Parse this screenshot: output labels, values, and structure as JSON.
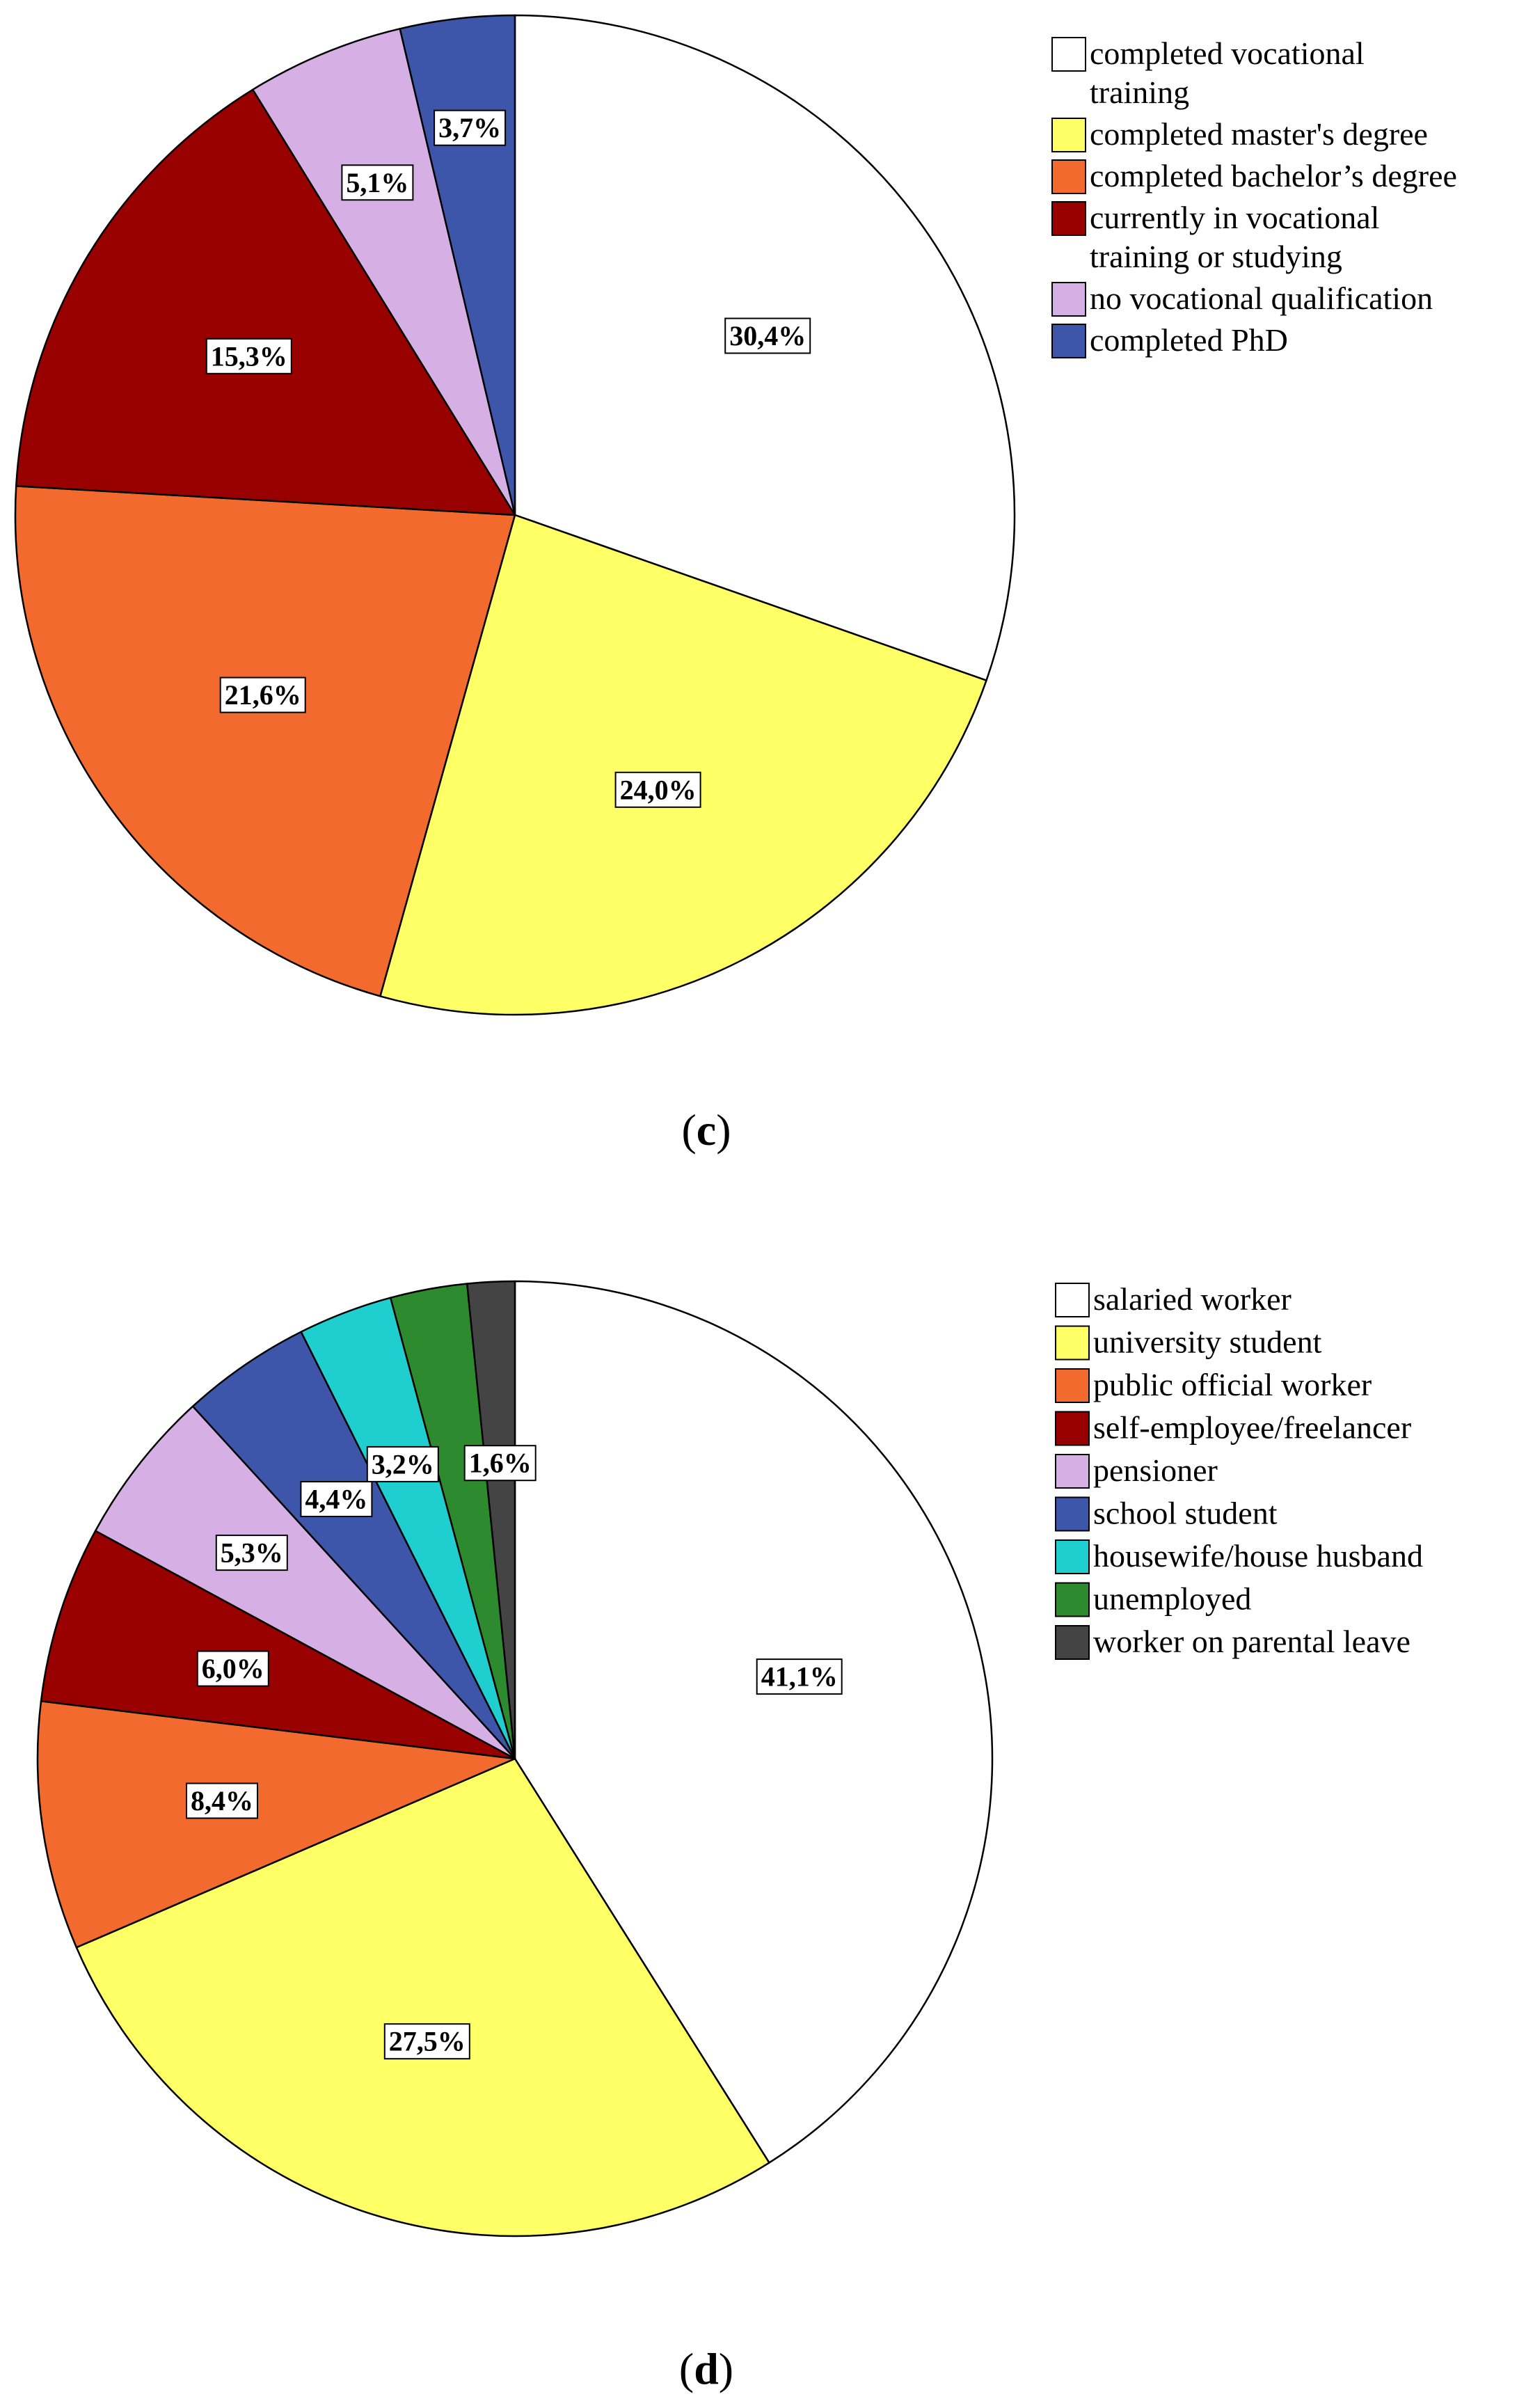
{
  "chart_data": [
    {
      "type": "pie",
      "panel": "c",
      "caption": {
        "open": "(",
        "letter": "c",
        "close": ")"
      },
      "slices": [
        {
          "label": "completed vocational training",
          "legend_lines": [
            "completed vocational",
            "training"
          ],
          "value": 30.4,
          "value_label": "30,4%",
          "color": "#ffffff"
        },
        {
          "label": "completed master's degree",
          "legend_lines": [
            "completed master's degree"
          ],
          "value": 24.0,
          "value_label": "24,0%",
          "color": "#ffff66"
        },
        {
          "label": "completed bachelor’s degree",
          "legend_lines": [
            "completed bachelor’s degree"
          ],
          "value": 21.6,
          "value_label": "21,6%",
          "color": "#f26a2e"
        },
        {
          "label": "currently in vocational training or studying",
          "legend_lines": [
            "currently in vocational",
            "training or studying"
          ],
          "value": 15.3,
          "value_label": "15,3%",
          "color": "#990000"
        },
        {
          "label": "no vocational qualification",
          "legend_lines": [
            "no vocational qualification"
          ],
          "value": 5.1,
          "value_label": "5,1%",
          "color": "#d6b0e4"
        },
        {
          "label": "completed PhD",
          "legend_lines": [
            "completed PhD"
          ],
          "value": 3.7,
          "value_label": "3,7%",
          "color": "#3d56aa"
        }
      ]
    },
    {
      "type": "pie",
      "panel": "d",
      "caption": {
        "open": "(",
        "letter": "d",
        "close": ")"
      },
      "slices": [
        {
          "label": "salaried worker",
          "legend_lines": [
            "salaried worker"
          ],
          "value": 41.1,
          "value_label": "41,1%",
          "color": "#ffffff"
        },
        {
          "label": "university student",
          "legend_lines": [
            "university student"
          ],
          "value": 27.5,
          "value_label": "27,5%",
          "color": "#ffff66"
        },
        {
          "label": "public official worker",
          "legend_lines": [
            "public official worker"
          ],
          "value": 8.4,
          "value_label": "8,4%",
          "color": "#f26a2e"
        },
        {
          "label": "self-employee/freelancer",
          "legend_lines": [
            "self-employee/freelancer"
          ],
          "value": 6.0,
          "value_label": "6,0%",
          "color": "#990000"
        },
        {
          "label": "pensioner",
          "legend_lines": [
            "pensioner"
          ],
          "value": 5.3,
          "value_label": "5,3%",
          "color": "#d6b0e4"
        },
        {
          "label": "school student",
          "legend_lines": [
            "school student"
          ],
          "value": 4.4,
          "value_label": "4,4%",
          "color": "#3d56aa"
        },
        {
          "label": "housewife/house husband",
          "legend_lines": [
            "housewife/house husband"
          ],
          "value": 3.2,
          "value_label": "3,2%",
          "color": "#1fcfcf"
        },
        {
          "label": "unemployed",
          "legend_lines": [
            "unemployed"
          ],
          "value": 2.6,
          "value_label": "",
          "color": "#2e8a2e"
        },
        {
          "label": "worker on parental leave",
          "legend_lines": [
            "worker on parental leave"
          ],
          "value": 1.6,
          "value_label": "1,6%",
          "color": "#444444"
        }
      ]
    }
  ]
}
